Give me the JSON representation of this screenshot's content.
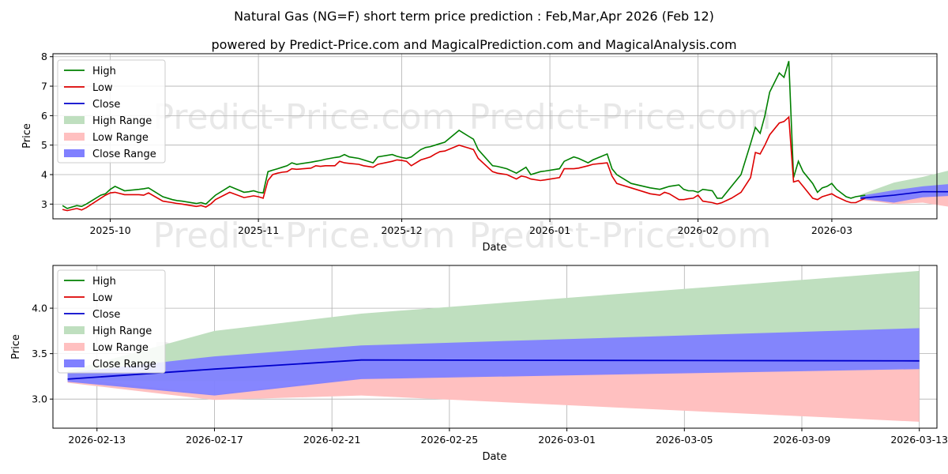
{
  "title": "Natural Gas (NG=F) short term price prediction : Feb,Mar,Apr 2026 (Feb 12)",
  "subtitle": "powered by Predict-Price.com and MagicalPrediction.com and MagicalAnalysis.com",
  "watermark": "Predict-Price.com",
  "colors": {
    "high": "#008000",
    "low": "#dd0000",
    "close": "#0000cc",
    "high_range": "#bfdfbf",
    "low_range": "#ffc0c0",
    "close_range": "#8080ff"
  },
  "chart_data": [
    {
      "type": "line",
      "title": "",
      "xlabel": "Date",
      "ylabel": "Price",
      "grid": true,
      "legend_position": "top-left",
      "legend": [
        "High",
        "Low",
        "Close",
        "High Range",
        "Low Range",
        "Close Range"
      ],
      "x_ticks": [
        "2025-10",
        "2025-11",
        "2025-12",
        "2026-01",
        "2026-02",
        "2026-03"
      ],
      "x_tick_days": [
        30,
        61,
        91,
        122,
        153,
        181
      ],
      "y_ticks": [
        3,
        4,
        5,
        6,
        7,
        8
      ],
      "xlim": [
        18,
        203
      ],
      "ylim": [
        2.5,
        8.1
      ],
      "series": [
        {
          "name": "High",
          "x": [
            20,
            21,
            23,
            24,
            25,
            28,
            29,
            30,
            31,
            33,
            36,
            37,
            38,
            41,
            43,
            44,
            45,
            48,
            49,
            50,
            51,
            52,
            55,
            58,
            59,
            60,
            61,
            62,
            63,
            64,
            65,
            66,
            67,
            68,
            69,
            72,
            73,
            74,
            75,
            77,
            78,
            79,
            80,
            82,
            83,
            85,
            86,
            89,
            90,
            91,
            92,
            93,
            95,
            96,
            97,
            98,
            99,
            100,
            103,
            104,
            105,
            106,
            107,
            110,
            111,
            113,
            115,
            116,
            117,
            118,
            120,
            121,
            124,
            125,
            127,
            128,
            130,
            131,
            134,
            135,
            136,
            137,
            139,
            143,
            145,
            146,
            147,
            149,
            150,
            151,
            152,
            153,
            154,
            156,
            157,
            158,
            160,
            162,
            164
          ],
          "y": [
            2.95,
            2.85,
            2.95,
            2.92,
            3.0,
            3.3,
            3.35,
            3.5,
            3.6,
            3.45,
            3.5,
            3.52,
            3.55,
            3.25,
            3.15,
            3.12,
            3.1,
            3.02,
            3.05,
            3.0,
            3.15,
            3.3,
            3.6,
            3.4,
            3.42,
            3.45,
            3.4,
            3.38,
            4.1,
            4.15,
            4.2,
            4.25,
            4.3,
            4.4,
            4.35,
            4.42,
            4.45,
            4.48,
            4.52,
            4.58,
            4.6,
            4.68,
            4.6,
            4.55,
            4.5,
            4.4,
            4.6,
            4.68,
            4.62,
            4.58,
            4.55,
            4.6,
            4.85,
            4.92,
            4.95,
            5.0,
            5.05,
            5.1,
            5.5,
            5.4,
            5.3,
            5.2,
            4.85,
            4.3,
            4.28,
            4.2,
            4.05,
            4.15,
            4.25,
            4.0,
            4.1,
            4.12,
            4.2,
            4.45,
            4.6,
            4.55,
            4.4,
            4.5,
            4.7,
            4.2,
            4.0,
            3.9,
            3.7,
            3.55,
            3.5,
            3.55,
            3.6,
            3.65,
            3.5,
            3.45,
            3.45,
            3.4,
            3.5,
            3.45,
            3.2,
            3.2,
            3.6,
            4.0,
            5.05
          ],
          "note": "continues"
        },
        {
          "name": "High_tail",
          "x": [
            164,
            165,
            166,
            167,
            168,
            170,
            171,
            172,
            173,
            174,
            175,
            177,
            178,
            179,
            180,
            181,
            182,
            184,
            185,
            186,
            188
          ],
          "y": [
            5.05,
            5.6,
            5.4,
            6.0,
            6.8,
            7.45,
            7.3,
            7.85,
            3.9,
            4.45,
            4.1,
            3.7,
            3.4,
            3.55,
            3.6,
            3.7,
            3.5,
            3.25,
            3.2,
            3.25,
            3.3
          ]
        },
        {
          "name": "Low",
          "x": [
            20,
            21,
            23,
            24,
            25,
            28,
            29,
            30,
            31,
            33,
            36,
            37,
            38,
            41,
            43,
            44,
            45,
            48,
            49,
            50,
            51,
            52,
            55,
            58,
            59,
            60,
            61,
            62,
            63,
            64,
            65,
            66,
            67,
            68,
            69,
            72,
            73,
            74,
            75,
            77,
            78,
            79,
            80,
            82,
            83,
            85,
            86,
            89,
            90,
            91,
            92,
            93,
            95,
            96,
            97,
            98,
            99,
            100,
            103,
            104,
            105,
            106,
            107,
            110,
            111,
            113,
            115,
            116,
            117,
            118,
            120,
            121,
            124,
            125,
            127,
            128,
            130,
            131,
            134,
            135,
            136,
            137,
            139,
            143,
            145,
            146,
            147,
            149,
            150,
            151,
            152,
            153,
            154,
            156,
            157,
            158,
            160,
            162,
            164
          ],
          "y": [
            2.82,
            2.78,
            2.85,
            2.8,
            2.88,
            3.2,
            3.3,
            3.38,
            3.4,
            3.32,
            3.32,
            3.3,
            3.38,
            3.1,
            3.05,
            3.02,
            3.0,
            2.92,
            2.95,
            2.9,
            3.0,
            3.15,
            3.4,
            3.22,
            3.25,
            3.28,
            3.25,
            3.2,
            3.8,
            4.0,
            4.05,
            4.08,
            4.1,
            4.2,
            4.18,
            4.22,
            4.3,
            4.28,
            4.3,
            4.3,
            4.45,
            4.4,
            4.38,
            4.35,
            4.3,
            4.25,
            4.35,
            4.45,
            4.5,
            4.48,
            4.45,
            4.3,
            4.5,
            4.55,
            4.6,
            4.7,
            4.78,
            4.8,
            5.0,
            4.95,
            4.9,
            4.85,
            4.55,
            4.1,
            4.05,
            4.0,
            3.85,
            3.95,
            3.92,
            3.85,
            3.8,
            3.82,
            3.9,
            4.2,
            4.2,
            4.22,
            4.3,
            4.35,
            4.4,
            3.95,
            3.7,
            3.65,
            3.55,
            3.35,
            3.3,
            3.4,
            3.35,
            3.15,
            3.15,
            3.18,
            3.2,
            3.3,
            3.1,
            3.05,
            3.0,
            3.05,
            3.2,
            3.4,
            3.9
          ],
          "note": "continues"
        },
        {
          "name": "Low_tail",
          "x": [
            164,
            165,
            166,
            167,
            168,
            170,
            171,
            172,
            173,
            174,
            175,
            177,
            178,
            179,
            180,
            181,
            182,
            184,
            185,
            186,
            188
          ],
          "y": [
            3.9,
            4.75,
            4.7,
            5.0,
            5.35,
            5.75,
            5.8,
            5.95,
            3.75,
            3.8,
            3.6,
            3.2,
            3.15,
            3.25,
            3.3,
            3.35,
            3.25,
            3.1,
            3.05,
            3.05,
            3.2
          ]
        },
        {
          "name": "Close",
          "x": [
            187,
            194,
            200,
            212
          ],
          "y": [
            3.2,
            3.3,
            3.42,
            3.42
          ]
        },
        {
          "name": "High Range",
          "x": [
            187,
            194,
            200,
            212
          ],
          "upper": [
            3.32,
            3.73,
            3.92,
            4.4
          ],
          "lower": [
            3.2,
            3.2,
            3.2,
            3.2
          ]
        },
        {
          "name": "Low Range",
          "x": [
            187,
            194,
            200,
            212
          ],
          "upper": [
            3.25,
            3.2,
            3.3,
            3.3
          ],
          "lower": [
            3.15,
            3.0,
            3.05,
            2.75
          ]
        },
        {
          "name": "Close Range",
          "x": [
            187,
            194,
            200,
            212
          ],
          "upper": [
            3.28,
            3.47,
            3.6,
            3.77
          ],
          "lower": [
            3.18,
            3.05,
            3.23,
            3.33
          ]
        }
      ]
    },
    {
      "type": "area",
      "title": "",
      "xlabel": "Date",
      "ylabel": "Price",
      "grid": true,
      "legend_position": "top-left",
      "legend": [
        "High",
        "Low",
        "Close",
        "High Range",
        "Low Range",
        "Close Range"
      ],
      "x_ticks": [
        "2026-02-13",
        "2026-02-17",
        "2026-02-21",
        "2026-02-25",
        "2026-03-01",
        "2026-03-05",
        "2026-03-09",
        "2026-03-13"
      ],
      "x_tick_days": [
        1,
        5,
        9,
        13,
        17,
        21,
        25,
        29
      ],
      "y_ticks": [
        3.0,
        3.5,
        4.0
      ],
      "xlim": [
        -0.5,
        29.6
      ],
      "ylim": [
        2.68,
        4.47
      ],
      "dates": [
        0,
        5,
        10,
        29
      ],
      "series": [
        {
          "name": "High Range",
          "upper": [
            3.31,
            3.75,
            3.94,
            4.41
          ],
          "lower": [
            3.2,
            3.2,
            3.2,
            3.2
          ]
        },
        {
          "name": "Low Range",
          "upper": [
            3.24,
            3.05,
            3.25,
            3.33
          ],
          "lower": [
            3.18,
            2.99,
            3.04,
            2.75
          ]
        },
        {
          "name": "Close Range",
          "upper": [
            3.29,
            3.47,
            3.59,
            3.78
          ],
          "lower": [
            3.19,
            3.04,
            3.22,
            3.33
          ]
        },
        {
          "name": "Close",
          "values": [
            3.22,
            3.33,
            3.43,
            3.42
          ]
        }
      ]
    }
  ]
}
